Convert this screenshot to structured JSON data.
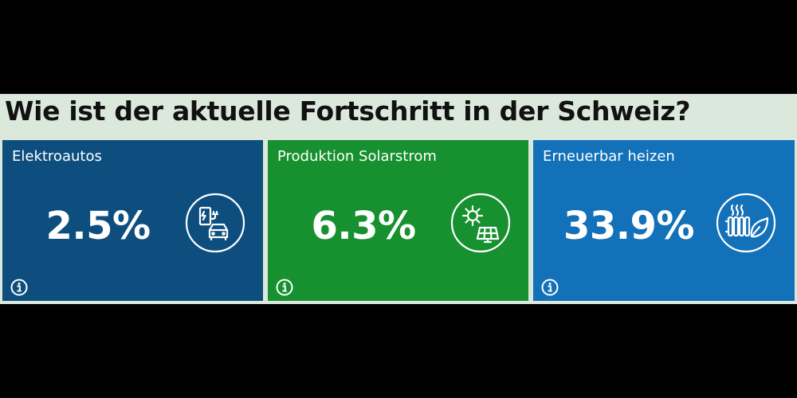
{
  "title": "Wie ist der aktuelle Fortschritt in der Schweiz?",
  "colors": {
    "background": "#dbe8dc",
    "elektro": "#0d4e7e",
    "solar": "#17902f",
    "heizen": "#1271b8"
  },
  "cards": [
    {
      "label": "Elektroautos",
      "value": "2.5%",
      "icon": "ev-charging-car-icon",
      "info_icon": "info-icon"
    },
    {
      "label": "Produktion Solarstrom",
      "value": "6.3%",
      "icon": "sun-solar-panel-icon",
      "info_icon": "info-icon"
    },
    {
      "label": "Erneuerbar heizen",
      "value": "33.9%",
      "icon": "radiator-leaf-icon",
      "info_icon": "info-icon"
    }
  ]
}
